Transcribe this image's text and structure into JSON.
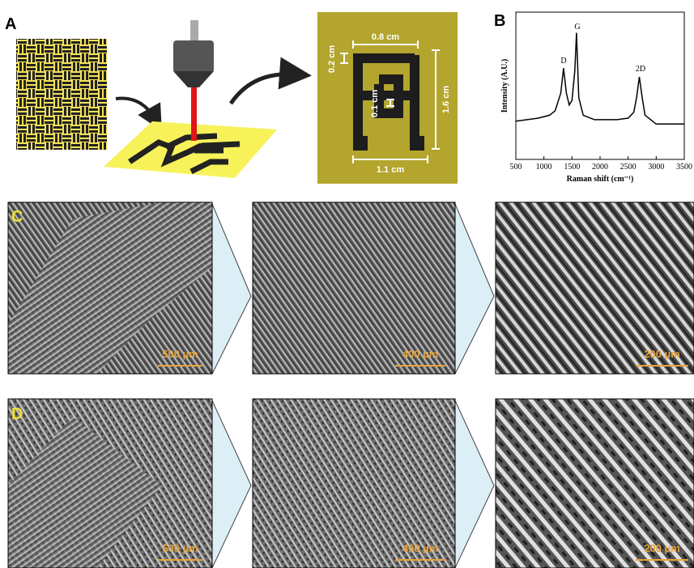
{
  "panels": {
    "a": {
      "label": "A",
      "dimensions": [
        "0.8 cm",
        "0.2 cm",
        "0.1 cm",
        "1.6 cm",
        "1.1 cm"
      ]
    },
    "b": {
      "label": "B"
    },
    "c": {
      "label": "C",
      "scale_bars": [
        "500 µm",
        "400 µm",
        "200 µm"
      ]
    },
    "d": {
      "label": "D",
      "scale_bars": [
        "500 µm",
        "400 µm",
        "200 µm"
      ]
    }
  },
  "chart_data": {
    "type": "line",
    "y_label": "Intensity (A.U.)",
    "x_label": "Raman shift (cm⁻¹)",
    "annotations": [
      "D",
      "G",
      "2D"
    ],
    "x": [
      500,
      700,
      900,
      1100,
      1200,
      1300,
      1350,
      1400,
      1450,
      1500,
      1550,
      1580,
      1620,
      1700,
      1900,
      2100,
      2300,
      2500,
      2600,
      2650,
      2700,
      2750,
      2800,
      3000,
      3200,
      3400,
      3500
    ],
    "values": [
      0.26,
      0.27,
      0.28,
      0.3,
      0.33,
      0.45,
      0.62,
      0.45,
      0.37,
      0.4,
      0.6,
      0.86,
      0.42,
      0.3,
      0.27,
      0.27,
      0.27,
      0.28,
      0.32,
      0.42,
      0.56,
      0.42,
      0.3,
      0.24,
      0.24,
      0.24,
      0.24
    ],
    "color": "#000000",
    "xlim": [
      500,
      3500
    ],
    "xticks": [
      500,
      1000,
      1500,
      2000,
      2500,
      3000,
      3500
    ],
    "ylim": [
      0,
      1
    ]
  }
}
